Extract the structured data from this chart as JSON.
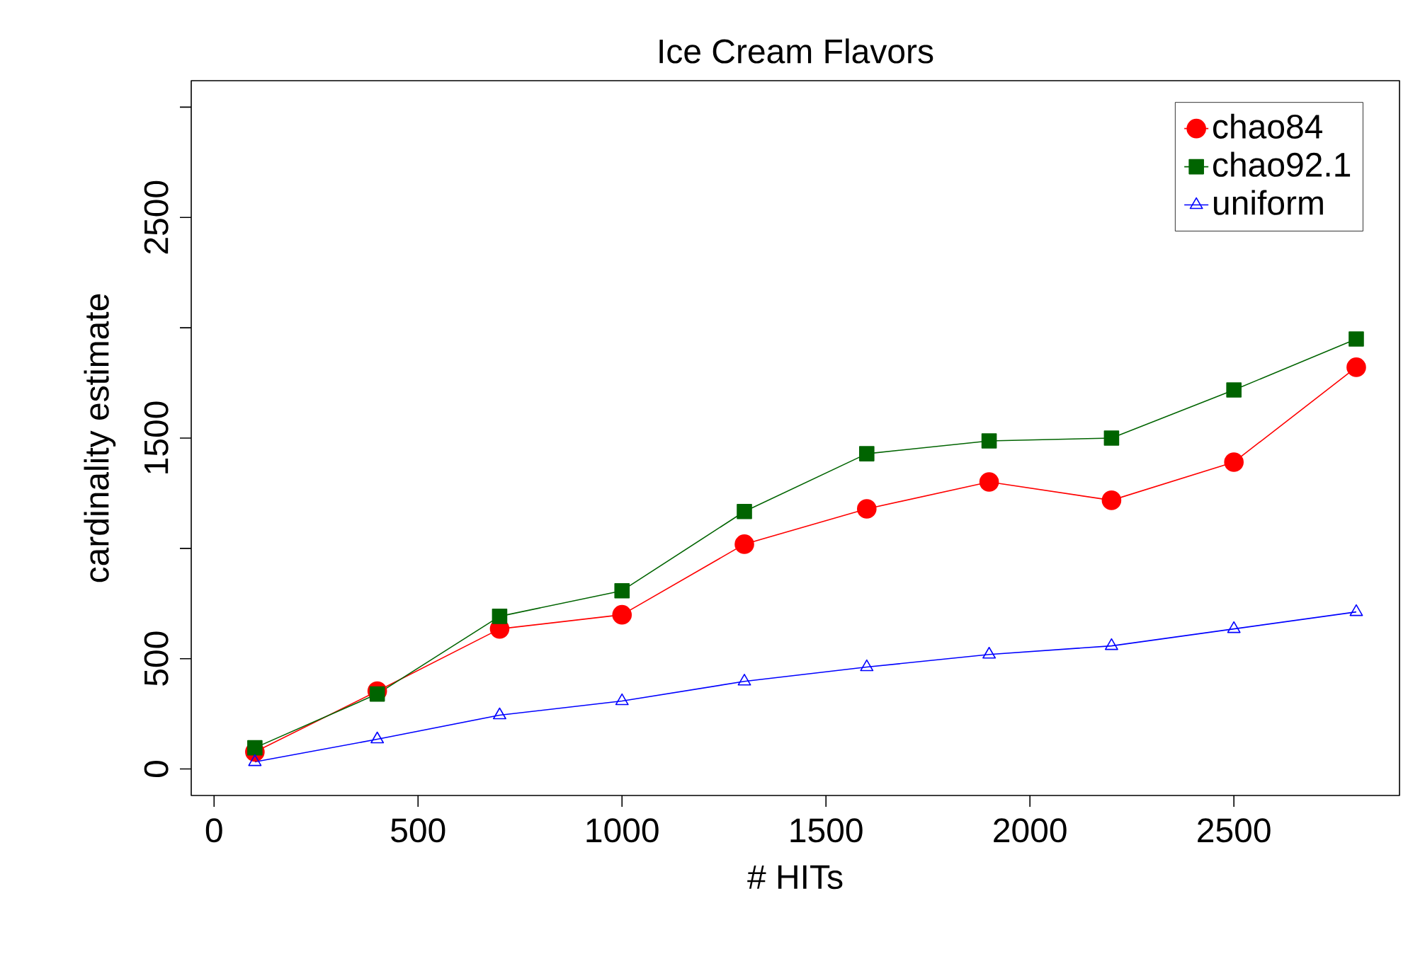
{
  "chart_data": {
    "type": "line",
    "title": "Ice Cream Flavors",
    "xlabel": "# HITs",
    "ylabel": "cardinality estimate",
    "x": [
      100,
      400,
      700,
      1000,
      1300,
      1600,
      1900,
      2200,
      2500,
      2800
    ],
    "series": [
      {
        "name": "chao84",
        "color": "#ff0000",
        "marker": "circle",
        "values": [
          77,
          353,
          635,
          699,
          1019,
          1179,
          1301,
          1218,
          1391,
          1821
        ]
      },
      {
        "name": "chao92.1",
        "color": "#006400",
        "marker": "square",
        "values": [
          96,
          340,
          692,
          808,
          1167,
          1429,
          1487,
          1500,
          1718,
          1949
        ]
      },
      {
        "name": "uniform",
        "color": "#0000ff",
        "marker": "triangle",
        "values": [
          32,
          135,
          244,
          308,
          397,
          462,
          519,
          558,
          635,
          712
        ]
      }
    ],
    "xlim": [
      -56,
      2906
    ],
    "ylim": [
      -120,
      3120
    ],
    "xticks": [
      0,
      500,
      1000,
      1500,
      2000,
      2500
    ],
    "yticks": [
      0,
      500,
      {
        "value": 1000,
        "label": null
      },
      1500,
      {
        "value": 2000,
        "label": null
      },
      2500,
      {
        "value": 3000,
        "label": null
      }
    ],
    "grid": false,
    "legend": "top right",
    "line_style": "solid"
  }
}
